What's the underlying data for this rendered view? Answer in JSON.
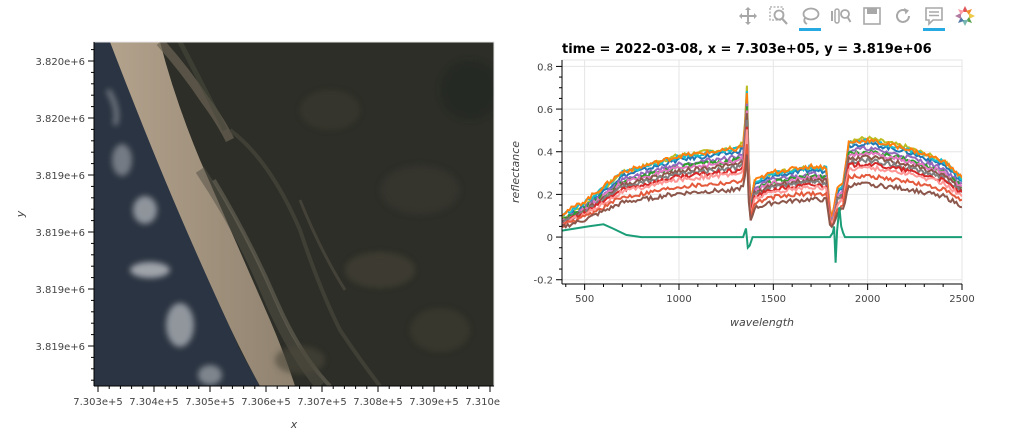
{
  "toolbar": {
    "tools": [
      {
        "name": "pan-icon",
        "active": false
      },
      {
        "name": "box-zoom-icon",
        "active": false
      },
      {
        "name": "lasso-select-icon",
        "active": true
      },
      {
        "name": "wheel-zoom-icon",
        "active": false
      },
      {
        "name": "save-icon",
        "active": false
      },
      {
        "name": "reset-icon",
        "active": false
      },
      {
        "name": "hover-icon",
        "active": true
      },
      {
        "name": "bokeh-logo-icon",
        "active": false
      }
    ],
    "accent": "#26aae1"
  },
  "chart_data": [
    {
      "type": "image",
      "xlabel": "x",
      "ylabel": "y",
      "xticks": [
        "7.303e+5",
        "7.304e+5",
        "7.305e+5",
        "7.306e+5",
        "7.307e+5",
        "7.308e+5",
        "7.309e+5",
        "7.310e+5"
      ],
      "yticks": [
        "3.820e+6",
        "3.820e+6",
        "3.819e+6",
        "3.819e+6",
        "3.819e+6",
        "3.819e+6"
      ],
      "description_colors": {
        "ocean": "#2b3542",
        "beach": "#a89a86",
        "vegetation": "#2f3227"
      }
    },
    {
      "type": "line",
      "title": "time = 2022-03-08, x = 7.303e+05, y = 3.819e+06",
      "xlabel": "wavelength",
      "ylabel": "reflectance",
      "xlim": [
        380,
        2500
      ],
      "ylim": [
        -0.22,
        0.83
      ],
      "xticks": [
        500,
        1000,
        1500,
        2000,
        2500
      ],
      "yticks": [
        -0.2,
        0,
        0.2,
        0.4,
        0.6,
        0.8
      ],
      "shape_knots_x": [
        380,
        500,
        700,
        1000,
        1300,
        1345,
        1360,
        1375,
        1400,
        1500,
        1700,
        1780,
        1805,
        1825,
        1840,
        1870,
        1900,
        2000,
        2200,
        2400,
        2500
      ],
      "series": [
        {
          "color": "#bcbd22",
          "scale": 0.58,
          "offset": 0.0
        },
        {
          "color": "#1f77b4",
          "scale": 0.55,
          "offset": 0.0
        },
        {
          "color": "#17becf",
          "scale": 0.54,
          "offset": 0.02
        },
        {
          "color": "#ff7f0e",
          "scale": 0.53,
          "offset": 0.03
        },
        {
          "color": "#9467bd",
          "scale": 0.52,
          "offset": 0.0
        },
        {
          "color": "#2ca02c",
          "scale": 0.5,
          "offset": 0.0
        },
        {
          "color": "#e377c2",
          "scale": 0.49,
          "offset": 0.0
        },
        {
          "color": "#8c564b",
          "scale": 0.47,
          "offset": 0.0
        },
        {
          "color": "#7f7f7f",
          "scale": 0.45,
          "offset": 0.0
        },
        {
          "color": "#d62728",
          "scale": 0.43,
          "offset": 0.0
        },
        {
          "color": "#ff9896",
          "scale": 0.41,
          "offset": 0.0
        },
        {
          "color": "#e45a3c",
          "scale": 0.36,
          "offset": 0.0
        },
        {
          "color": "#8c564b",
          "scale": 0.31,
          "offset": 0.0
        }
      ],
      "water_series": {
        "color": "#1b9e77",
        "points": [
          [
            380,
            0.03
          ],
          [
            450,
            0.04
          ],
          [
            520,
            0.05
          ],
          [
            600,
            0.06
          ],
          [
            650,
            0.04
          ],
          [
            720,
            0.01
          ],
          [
            800,
            0.0
          ],
          [
            1000,
            0.0
          ],
          [
            1200,
            0.0
          ],
          [
            1340,
            0.0
          ],
          [
            1355,
            0.04
          ],
          [
            1365,
            -0.05
          ],
          [
            1375,
            -0.04
          ],
          [
            1390,
            0.0
          ],
          [
            1600,
            0.0
          ],
          [
            1800,
            0.0
          ],
          [
            1815,
            0.02
          ],
          [
            1822,
            0.05
          ],
          [
            1830,
            -0.12
          ],
          [
            1838,
            0.03
          ],
          [
            1850,
            0.14
          ],
          [
            1860,
            0.05
          ],
          [
            1870,
            0.02
          ],
          [
            1880,
            0.0
          ],
          [
            2100,
            0.0
          ],
          [
            2300,
            0.0
          ],
          [
            2500,
            0.0
          ]
        ]
      }
    }
  ]
}
